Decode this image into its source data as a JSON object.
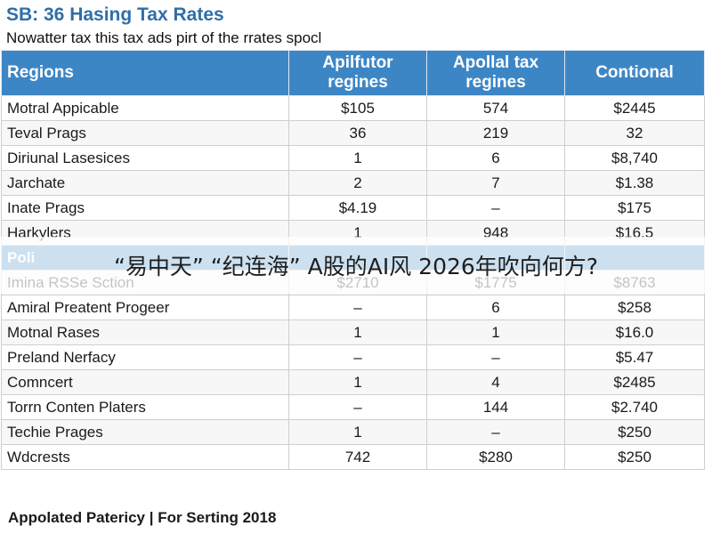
{
  "title": "SB: 36 Hasing Tax Rates",
  "subtitle": "Nowatter tax this tax ads pirt of the rrates spocl",
  "table": {
    "headers": [
      "Regions",
      "Apilfutor regines",
      "Apollal tax regines",
      "Contional"
    ],
    "rows": [
      [
        "Motral Appicable",
        "$105",
        "574",
        "$2445"
      ],
      [
        "Teval Prags",
        "36",
        "219",
        "32"
      ],
      [
        "Diriunal Lasesices",
        "1",
        "6",
        "$8,740"
      ],
      [
        "Jarchate",
        "2",
        "7",
        "$1.38"
      ],
      [
        "Inate Prags",
        "$4.19",
        "–",
        "$175"
      ],
      [
        "Harkylers",
        "1",
        "948",
        "$16.5"
      ],
      [
        "Poli",
        "",
        "",
        ""
      ],
      [
        "Imina RSSe Sction",
        "$2710",
        "$1775",
        "$8763"
      ],
      [
        "Amiral Preatent Progeer",
        "–",
        "6",
        "$258"
      ],
      [
        "Motnal Rases",
        "1",
        "1",
        "$16.0"
      ],
      [
        "Preland Nerfacy",
        "–",
        "–",
        "$5.47"
      ],
      [
        "Comncert",
        "1",
        "4",
        "$2485"
      ],
      [
        "Torrn Conten Platers",
        "–",
        "144",
        "$2.740"
      ],
      [
        "Techie Prages",
        "1",
        "–",
        "$250"
      ],
      [
        "Wdcrests",
        "742",
        "$280",
        "$250"
      ]
    ]
  },
  "overlay_text": "“易中天”  “纪连海”  A股的AI风 2026年吹向何方?",
  "footer": "Appolated Patericy | For Serting 2018"
}
